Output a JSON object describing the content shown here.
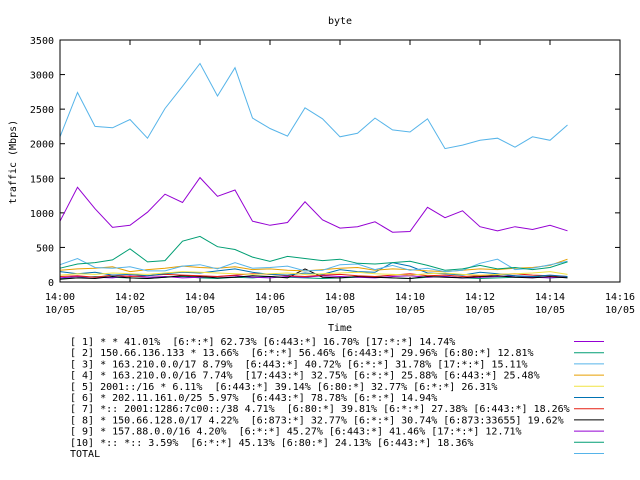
{
  "chart_data": {
    "type": "line",
    "title": "byte",
    "xlabel": "Time",
    "ylabel": "traffic (Mbps)",
    "ylim": [
      0,
      3500
    ],
    "yticks": [
      0,
      500,
      1000,
      1500,
      2000,
      2500,
      3000,
      3500
    ],
    "xticks": [
      {
        "time": "14:00",
        "date": "10/05"
      },
      {
        "time": "14:02",
        "date": "10/05"
      },
      {
        "time": "14:04",
        "date": "10/05"
      },
      {
        "time": "14:06",
        "date": "10/05"
      },
      {
        "time": "14:08",
        "date": "10/05"
      },
      {
        "time": "14:10",
        "date": "10/05"
      },
      {
        "time": "14:12",
        "date": "10/05"
      },
      {
        "time": "14:14",
        "date": "10/05"
      },
      {
        "time": "14:16",
        "date": "10/05"
      }
    ],
    "x_minutes": [
      0,
      0.5,
      1,
      1.5,
      2,
      2.5,
      3,
      3.5,
      4,
      4.5,
      5,
      5.5,
      6,
      6.5,
      7,
      7.5,
      8,
      8.5,
      9,
      9.5,
      10,
      10.5,
      11,
      11.5,
      12,
      12.5,
      13,
      13.5,
      14,
      14.5
    ],
    "x_range_minutes": [
      0,
      16
    ],
    "grid": false,
    "legend_position": "bottom",
    "series": [
      {
        "name": "[ 1] * * 41.01%  [6:*:*] 62.73% [6:443:*] 16.70% [17:*:*] 14.74%",
        "color": "#9500d3",
        "values": [
          880,
          1370,
          1060,
          790,
          820,
          1010,
          1270,
          1150,
          1510,
          1240,
          1330,
          880,
          820,
          860,
          1160,
          900,
          780,
          800,
          870,
          720,
          730,
          1080,
          930,
          1030,
          800,
          740,
          800,
          760,
          820,
          740
        ]
      },
      {
        "name": "[ 2] 150.66.136.133 * 13.66%  [6:*:*] 56.46% [6:443:*] 29.96% [6:80:*] 12.81%",
        "color": "#009e73",
        "values": [
          200,
          260,
          280,
          320,
          480,
          290,
          310,
          590,
          660,
          510,
          470,
          360,
          300,
          370,
          340,
          310,
          330,
          270,
          260,
          280,
          300,
          240,
          170,
          190,
          240,
          190,
          210,
          180,
          210,
          290
        ]
      },
      {
        "name": "[ 3] * 163.210.0.0/17 8.79%  [6:443:*] 40.72% [6:*:*] 31.78% [17:*:*] 15.11%",
        "color": "#56b4e9",
        "values": [
          250,
          340,
          210,
          200,
          220,
          160,
          160,
          230,
          250,
          190,
          280,
          200,
          210,
          230,
          160,
          170,
          250,
          260,
          180,
          240,
          170,
          200,
          150,
          170,
          270,
          330,
          180,
          200,
          250,
          300
        ]
      },
      {
        "name": "[ 4] * 163.210.0.0/16 7.74%  [17:443:*] 32.75% [6:*:*] 25.88% [6:443:*] 25.48%",
        "color": "#e69f00",
        "values": [
          170,
          190,
          200,
          220,
          150,
          180,
          200,
          230,
          210,
          200,
          220,
          180,
          190,
          170,
          160,
          180,
          200,
          210,
          170,
          190,
          180,
          160,
          150,
          170,
          190,
          180,
          200,
          210,
          240,
          330
        ]
      },
      {
        "name": "[ 5] 2001::/16 * 6.11%  [6:443:*] 39.14% [6:80:*] 32.77% [6:*:*] 26.31%",
        "color": "#f0e442",
        "values": [
          100,
          120,
          110,
          130,
          120,
          110,
          130,
          150,
          140,
          130,
          120,
          110,
          120,
          130,
          110,
          120,
          130,
          140,
          120,
          110,
          100,
          120,
          130,
          110,
          100,
          110,
          120,
          130,
          150,
          110
        ]
      },
      {
        "name": "[ 6] * 202.11.161.0/25 5.97%  [6:443:*] 78.78% [6:*:*] 14.94%",
        "color": "#0072b2",
        "values": [
          150,
          120,
          140,
          100,
          110,
          90,
          120,
          140,
          130,
          160,
          190,
          140,
          110,
          100,
          130,
          110,
          180,
          150,
          140,
          280,
          230,
          130,
          120,
          100,
          140,
          120,
          90,
          80,
          100,
          80
        ]
      },
      {
        "name": "[ 7] *:: 2001:1286:7c00::/38 4.71%  [6:80:*] 39.81% [6:*:*] 27.38% [6:443:*] 18.26%",
        "color": "#e51e10",
        "values": [
          80,
          90,
          70,
          100,
          80,
          90,
          110,
          100,
          90,
          80,
          100,
          120,
          110,
          90,
          80,
          100,
          110,
          90,
          80,
          100,
          120,
          90,
          100,
          80,
          90,
          110,
          120,
          100,
          90,
          80
        ]
      },
      {
        "name": "[ 8] * 150.66.128.0/17 4.22%  [6:873:*] 32.77% [6:*:*] 30.74% [6:873:33655] 19.62%",
        "color": "#000000",
        "values": [
          40,
          60,
          50,
          80,
          60,
          50,
          70,
          90,
          80,
          60,
          70,
          90,
          80,
          60,
          190,
          70,
          60,
          80,
          70,
          60,
          50,
          80,
          70,
          60,
          80,
          90,
          70,
          60,
          80,
          60
        ]
      },
      {
        "name": "[ 9] * 157.88.0.0/16 4.20%  [6:*:*] 45.27% [6:443:*] 41.46% [17:*:*] 12.71%",
        "color": "#9500d3",
        "values": [
          60,
          80,
          70,
          60,
          90,
          70,
          80,
          60,
          70,
          80,
          90,
          70,
          60,
          80,
          70,
          90,
          80,
          70,
          60,
          80,
          90,
          70,
          80,
          60,
          70,
          80,
          90,
          70,
          60,
          80
        ]
      },
      {
        "name": "[10] *:: *:: 3.59%  [6:*:*] 45.13% [6:80:*] 24.13% [6:443:*] 18.36%",
        "color": "#009e73",
        "values": [
          50,
          60,
          80,
          70,
          60,
          50,
          70,
          80,
          60,
          50,
          70,
          60,
          80,
          70,
          60,
          50,
          60,
          70,
          80,
          60,
          50,
          70,
          80,
          60,
          50,
          60,
          70,
          80,
          60,
          70
        ]
      },
      {
        "name": "TOTAL",
        "color": "#56b4e9",
        "values": [
          2100,
          2740,
          2250,
          2230,
          2350,
          2080,
          2510,
          2830,
          3160,
          2690,
          3100,
          2370,
          2220,
          2110,
          2520,
          2360,
          2100,
          2150,
          2370,
          2200,
          2170,
          2360,
          1930,
          1980,
          2050,
          2080,
          1950,
          2100,
          2050,
          2270
        ]
      }
    ]
  }
}
